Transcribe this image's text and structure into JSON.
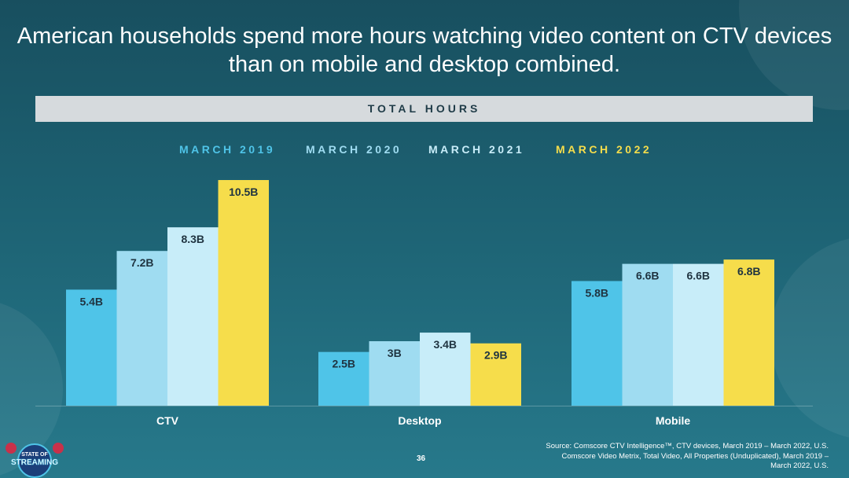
{
  "title": "American households spend more hours watching video content on CTV devices than on mobile and desktop combined.",
  "header": "TOTAL HOURS",
  "footer": {
    "page_number": "36",
    "source_lines": [
      "Source: Comscore CTV Intelligence™, CTV devices, March 2019 – March 2022, U.S.",
      "Comscore Video Metrix, Total Video, All Properties (Unduplicated), March 2019 –",
      "March 2022, U.S."
    ],
    "logo_text": "STATE OF STREAMING"
  },
  "chart_data": {
    "type": "bar",
    "categories": [
      "CTV",
      "Desktop",
      "Mobile"
    ],
    "series": [
      {
        "name": "MARCH 2019",
        "color": "#4fc4e8",
        "values": [
          5.4,
          2.5,
          5.8
        ],
        "labels": [
          "5.4B",
          "2.5B",
          "5.8B"
        ]
      },
      {
        "name": "MARCH 2020",
        "color": "#9fdcf1",
        "values": [
          7.2,
          3.0,
          6.6
        ],
        "labels": [
          "7.2B",
          "3B",
          "6.6B"
        ]
      },
      {
        "name": "MARCH 2021",
        "color": "#c8edf9",
        "values": [
          8.3,
          3.4,
          6.6
        ],
        "labels": [
          "8.3B",
          "3.4B",
          "6.6B"
        ]
      },
      {
        "name": "MARCH 2022",
        "color": "#f6dd4b",
        "values": [
          10.5,
          2.9,
          6.8
        ],
        "labels": [
          "10.5B",
          "2.9B",
          "6.8B"
        ]
      }
    ],
    "legend_colors": [
      "#4fc4e8",
      "#9fdcf1",
      "#c8edf9",
      "#f6dd4b"
    ],
    "unit": "B",
    "ylim": [
      0,
      10.5
    ],
    "grid": false,
    "legend_position": "top"
  }
}
